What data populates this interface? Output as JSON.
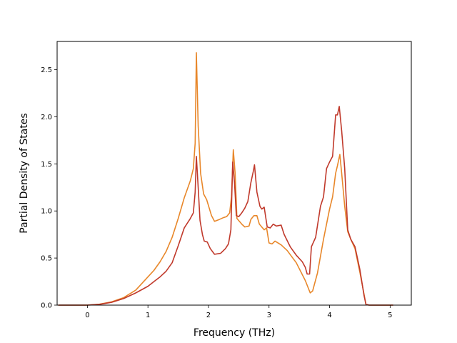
{
  "chart_data": {
    "type": "line",
    "title": "",
    "xlabel": "Frequency (THz)",
    "ylabel": "Partial Density of States",
    "xlim": [
      -0.5,
      5.35
    ],
    "ylim": [
      0.0,
      2.8
    ],
    "xticks": [
      0,
      1,
      2,
      3,
      4,
      5
    ],
    "yticks": [
      0.0,
      0.5,
      1.0,
      1.5,
      2.0,
      2.5
    ],
    "xtick_labels": [
      "0",
      "1",
      "2",
      "3",
      "4",
      "5"
    ],
    "ytick_labels": [
      "0.0",
      "0.5",
      "1.0",
      "1.5",
      "2.0",
      "2.5"
    ],
    "grid": false,
    "legend": null,
    "series": [
      {
        "color": "#e8872a",
        "points": [
          [
            -0.48,
            0.0
          ],
          [
            0.0,
            0.0
          ],
          [
            0.2,
            0.01
          ],
          [
            0.4,
            0.035
          ],
          [
            0.6,
            0.08
          ],
          [
            0.8,
            0.16
          ],
          [
            0.9,
            0.23
          ],
          [
            1.0,
            0.3
          ],
          [
            1.1,
            0.37
          ],
          [
            1.2,
            0.46
          ],
          [
            1.3,
            0.57
          ],
          [
            1.4,
            0.72
          ],
          [
            1.5,
            0.92
          ],
          [
            1.6,
            1.14
          ],
          [
            1.7,
            1.32
          ],
          [
            1.75,
            1.45
          ],
          [
            1.78,
            1.72
          ],
          [
            1.8,
            2.68
          ],
          [
            1.83,
            1.9
          ],
          [
            1.87,
            1.4
          ],
          [
            1.92,
            1.18
          ],
          [
            1.97,
            1.12
          ],
          [
            2.05,
            0.95
          ],
          [
            2.1,
            0.89
          ],
          [
            2.18,
            0.91
          ],
          [
            2.25,
            0.93
          ],
          [
            2.3,
            0.94
          ],
          [
            2.35,
            0.98
          ],
          [
            2.38,
            1.15
          ],
          [
            2.41,
            1.65
          ],
          [
            2.44,
            1.4
          ],
          [
            2.47,
            0.92
          ],
          [
            2.55,
            0.86
          ],
          [
            2.6,
            0.83
          ],
          [
            2.67,
            0.84
          ],
          [
            2.7,
            0.91
          ],
          [
            2.75,
            0.95
          ],
          [
            2.8,
            0.95
          ],
          [
            2.84,
            0.86
          ],
          [
            2.88,
            0.83
          ],
          [
            2.92,
            0.8
          ],
          [
            2.96,
            0.82
          ],
          [
            3.0,
            0.66
          ],
          [
            3.05,
            0.65
          ],
          [
            3.1,
            0.68
          ],
          [
            3.2,
            0.64
          ],
          [
            3.3,
            0.58
          ],
          [
            3.45,
            0.45
          ],
          [
            3.6,
            0.26
          ],
          [
            3.68,
            0.13
          ],
          [
            3.72,
            0.15
          ],
          [
            3.8,
            0.34
          ],
          [
            3.9,
            0.7
          ],
          [
            4.0,
            1.02
          ],
          [
            4.05,
            1.15
          ],
          [
            4.1,
            1.4
          ],
          [
            4.13,
            1.48
          ],
          [
            4.17,
            1.6
          ],
          [
            4.2,
            1.4
          ],
          [
            4.25,
            1.05
          ],
          [
            4.3,
            0.78
          ],
          [
            4.35,
            0.7
          ],
          [
            4.42,
            0.6
          ],
          [
            4.5,
            0.35
          ],
          [
            4.58,
            0.08
          ],
          [
            4.6,
            0.01
          ],
          [
            4.65,
            0.0
          ],
          [
            5.05,
            0.0
          ]
        ]
      },
      {
        "color": "#c0392b",
        "points": [
          [
            -0.48,
            0.0
          ],
          [
            0.0,
            0.0
          ],
          [
            0.2,
            0.008
          ],
          [
            0.4,
            0.03
          ],
          [
            0.6,
            0.07
          ],
          [
            0.8,
            0.13
          ],
          [
            1.0,
            0.2
          ],
          [
            1.1,
            0.25
          ],
          [
            1.2,
            0.3
          ],
          [
            1.3,
            0.36
          ],
          [
            1.4,
            0.45
          ],
          [
            1.5,
            0.63
          ],
          [
            1.6,
            0.82
          ],
          [
            1.7,
            0.92
          ],
          [
            1.75,
            0.98
          ],
          [
            1.78,
            1.2
          ],
          [
            1.8,
            1.58
          ],
          [
            1.83,
            1.25
          ],
          [
            1.86,
            0.9
          ],
          [
            1.9,
            0.75
          ],
          [
            1.93,
            0.68
          ],
          [
            1.98,
            0.67
          ],
          [
            2.03,
            0.6
          ],
          [
            2.1,
            0.54
          ],
          [
            2.2,
            0.55
          ],
          [
            2.28,
            0.6
          ],
          [
            2.33,
            0.65
          ],
          [
            2.37,
            0.8
          ],
          [
            2.4,
            1.52
          ],
          [
            2.43,
            1.3
          ],
          [
            2.46,
            0.95
          ],
          [
            2.5,
            0.94
          ],
          [
            2.55,
            0.98
          ],
          [
            2.6,
            1.03
          ],
          [
            2.65,
            1.1
          ],
          [
            2.7,
            1.3
          ],
          [
            2.74,
            1.42
          ],
          [
            2.76,
            1.49
          ],
          [
            2.8,
            1.2
          ],
          [
            2.85,
            1.05
          ],
          [
            2.88,
            1.02
          ],
          [
            2.92,
            1.04
          ],
          [
            2.97,
            0.83
          ],
          [
            3.02,
            0.82
          ],
          [
            3.07,
            0.86
          ],
          [
            3.12,
            0.84
          ],
          [
            3.2,
            0.85
          ],
          [
            3.25,
            0.75
          ],
          [
            3.35,
            0.62
          ],
          [
            3.45,
            0.53
          ],
          [
            3.55,
            0.46
          ],
          [
            3.6,
            0.4
          ],
          [
            3.63,
            0.33
          ],
          [
            3.67,
            0.33
          ],
          [
            3.7,
            0.62
          ],
          [
            3.77,
            0.72
          ],
          [
            3.85,
            1.05
          ],
          [
            3.9,
            1.15
          ],
          [
            3.95,
            1.45
          ],
          [
            4.0,
            1.52
          ],
          [
            4.05,
            1.58
          ],
          [
            4.1,
            2.02
          ],
          [
            4.13,
            2.02
          ],
          [
            4.16,
            2.11
          ],
          [
            4.2,
            1.85
          ],
          [
            4.25,
            1.45
          ],
          [
            4.3,
            0.8
          ],
          [
            4.35,
            0.7
          ],
          [
            4.42,
            0.62
          ],
          [
            4.5,
            0.38
          ],
          [
            4.57,
            0.1
          ],
          [
            4.6,
            0.01
          ],
          [
            4.65,
            0.0
          ],
          [
            5.05,
            0.0
          ]
        ]
      }
    ]
  }
}
